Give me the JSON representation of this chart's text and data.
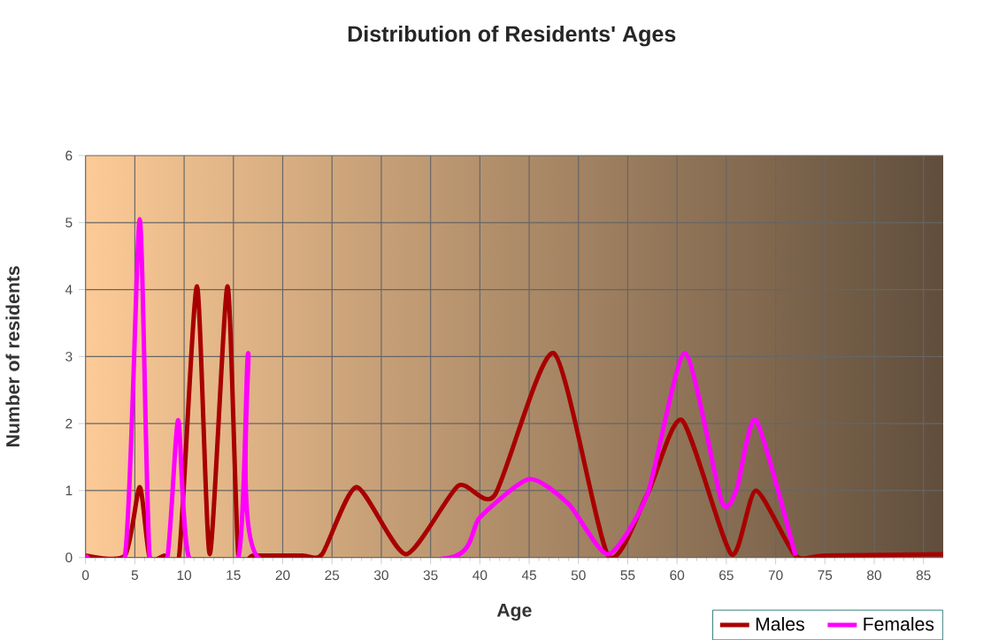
{
  "chart_data": {
    "type": "line",
    "title": "Distribution of Residents' Ages",
    "xlabel": "Age",
    "ylabel": "Number of residents",
    "xlim": [
      0,
      87
    ],
    "xticks": [
      0,
      5,
      10,
      15,
      20,
      25,
      30,
      35,
      40,
      45,
      50,
      55,
      60,
      65,
      70,
      75,
      80,
      85
    ],
    "ylim": [
      0,
      6
    ],
    "yticks": [
      0,
      1,
      2,
      3,
      4,
      5,
      6
    ],
    "grid": true,
    "legend": "bottom right",
    "marker": "none",
    "line_style": "solid",
    "series": [
      {
        "name": "Males",
        "color": "#a80000",
        "x": [
          0,
          4,
          5.5,
          6.5,
          8,
          9.5,
          11.3,
          12.6,
          14.4,
          15.5,
          17,
          22,
          24,
          27.5,
          32.5,
          37.8,
          41.5,
          47.5,
          53,
          57,
          60.5,
          65.5,
          68,
          72,
          75,
          87
        ],
        "values": [
          0.03,
          0.03,
          1.05,
          0,
          0.03,
          0.03,
          4.05,
          0.05,
          4.05,
          0.03,
          0.03,
          0.03,
          0.05,
          1.05,
          0.05,
          1.07,
          0.93,
          3.05,
          0.03,
          0.95,
          2.05,
          0.05,
          1.0,
          0.03,
          0.03,
          0.05
        ]
      },
      {
        "name": "Females",
        "color": "#ff00ff",
        "x": [
          0,
          4,
          5.5,
          6.5,
          8.3,
          9.4,
          10.5,
          15.5,
          16.5,
          17.5,
          37,
          40,
          45,
          49,
          53,
          57,
          60.8,
          64.5,
          66,
          68,
          72
        ],
        "values": [
          0.03,
          0.03,
          5.05,
          0,
          0,
          2.05,
          0,
          0,
          3.05,
          0,
          0,
          0.6,
          1.17,
          0.8,
          0.05,
          0.95,
          3.05,
          0.85,
          1.0,
          2.05,
          0.03
        ]
      }
    ]
  }
}
